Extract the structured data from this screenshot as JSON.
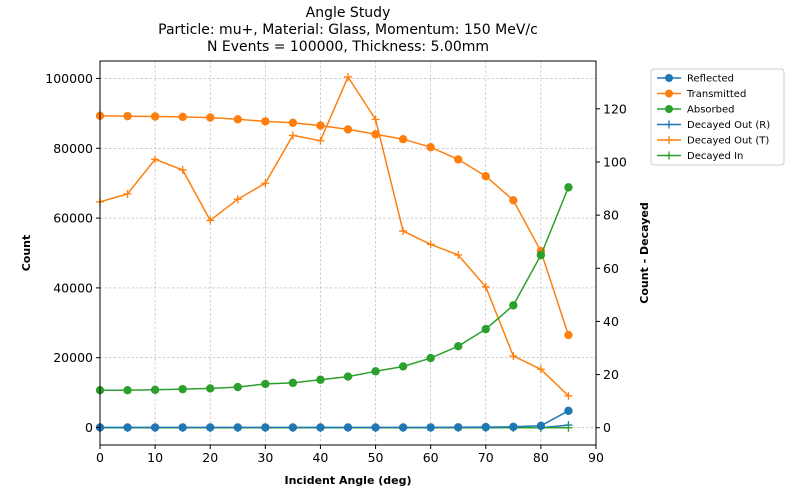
{
  "chart_data": {
    "type": "line",
    "title_lines": [
      "Angle Study",
      "Particle: mu+, Material: Glass, Momentum: 150 MeV/c",
      "N Events = 100000, Thickness: 5.00mm"
    ],
    "xlabel": "Incident Angle (deg)",
    "ylabel_left": "Count",
    "ylabel_right": "Count - Decayed",
    "xlim": [
      0,
      90
    ],
    "ylim_left": [
      -5000,
      105000
    ],
    "ylim_right": [
      -6.5,
      138
    ],
    "x_ticks": [
      0,
      10,
      20,
      30,
      40,
      50,
      60,
      70,
      80,
      90
    ],
    "y_ticks_left": [
      0,
      20000,
      40000,
      60000,
      80000,
      100000
    ],
    "y_ticks_right": [
      0,
      20,
      40,
      60,
      80,
      100,
      120
    ],
    "grid": true,
    "legend_position": "outside-right",
    "x": [
      0,
      5,
      10,
      15,
      20,
      25,
      30,
      35,
      40,
      45,
      50,
      55,
      60,
      65,
      70,
      75,
      80,
      85
    ],
    "series": [
      {
        "name": "Reflected",
        "axis": "left",
        "marker": "circle",
        "color": "#1f77b4",
        "values": [
          30,
          30,
          30,
          30,
          30,
          30,
          30,
          30,
          30,
          30,
          30,
          30,
          40,
          80,
          120,
          200,
          500,
          4800
        ]
      },
      {
        "name": "Transmitted",
        "axis": "left",
        "marker": "circle",
        "color": "#ff7f0e",
        "values": [
          89300,
          89200,
          89100,
          89000,
          88800,
          88300,
          87700,
          87300,
          86500,
          85400,
          84000,
          82600,
          80300,
          76800,
          72000,
          65100,
          50500,
          26500
        ]
      },
      {
        "name": "Absorbed",
        "axis": "left",
        "marker": "circle",
        "color": "#2ca02c",
        "values": [
          10700,
          10700,
          10800,
          11000,
          11200,
          11600,
          12500,
          12800,
          13700,
          14600,
          16100,
          17500,
          19900,
          23300,
          28200,
          35000,
          49400,
          68800
        ]
      },
      {
        "name": "Decayed Out (R)",
        "axis": "right",
        "marker": "plus",
        "color": "#1f77b4",
        "values": [
          0,
          0,
          0,
          0,
          0,
          0,
          0,
          0,
          0,
          0,
          0,
          0,
          0,
          0,
          0,
          0,
          0,
          1
        ]
      },
      {
        "name": "Decayed Out (T)",
        "axis": "right",
        "marker": "plus",
        "color": "#ff7f0e",
        "values": [
          85,
          88,
          101,
          97,
          78,
          86,
          92,
          110,
          108,
          132,
          116,
          74,
          69,
          65,
          53,
          27,
          22,
          12
        ]
      },
      {
        "name": "Decayed In",
        "axis": "right",
        "marker": "plus",
        "color": "#2ca02c",
        "values": [
          0,
          0,
          0,
          0,
          0,
          0,
          0,
          0,
          0,
          0,
          0,
          0,
          0,
          0,
          0,
          0,
          0,
          0
        ]
      }
    ]
  },
  "colors": {
    "right_axis_label": "#ff0000",
    "grid": "#b0b0b0"
  }
}
